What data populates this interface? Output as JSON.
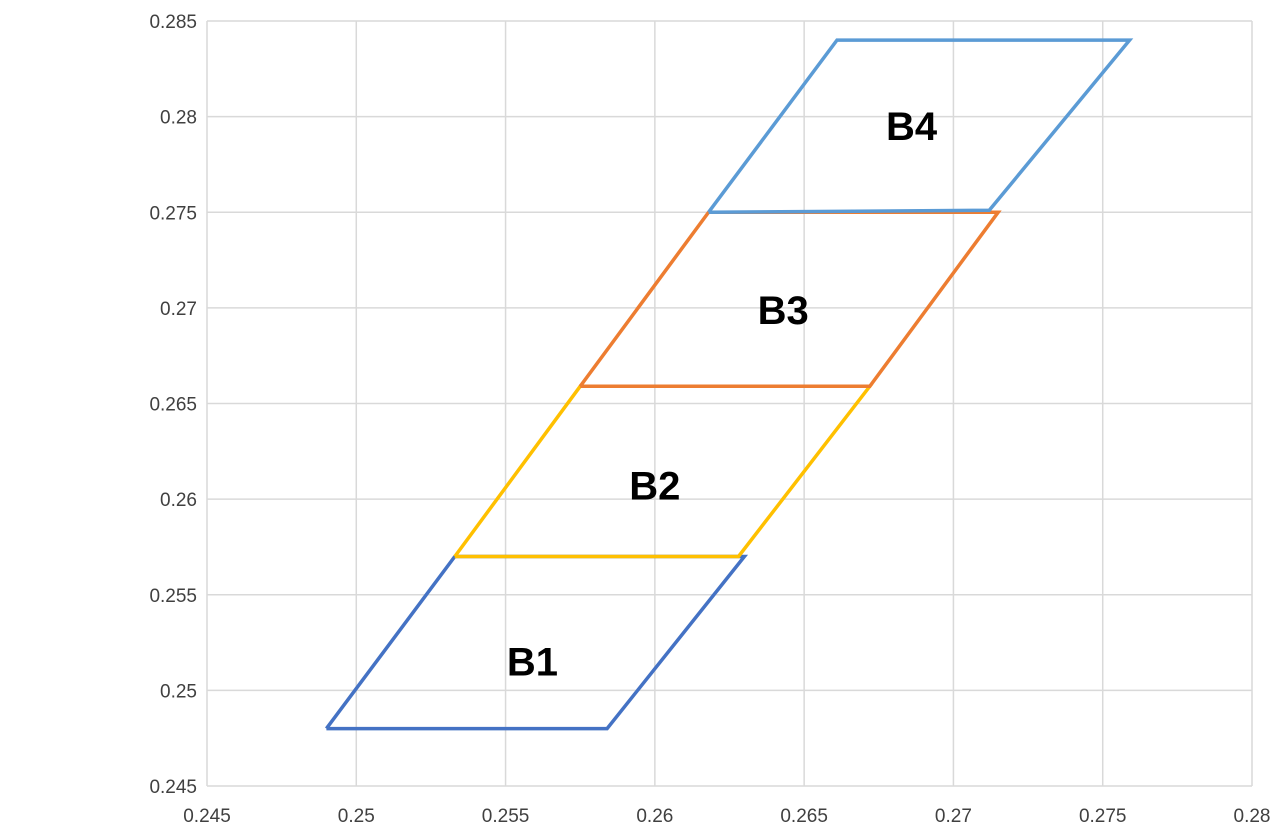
{
  "chart_data": {
    "type": "line",
    "title": "",
    "xlabel": "",
    "ylabel": "",
    "xlim": [
      0.245,
      0.28
    ],
    "ylim": [
      0.245,
      0.285
    ],
    "x_ticks": [
      0.245,
      0.25,
      0.255,
      0.26,
      0.265,
      0.27,
      0.275,
      0.28
    ],
    "y_ticks": [
      0.245,
      0.25,
      0.255,
      0.26,
      0.265,
      0.27,
      0.275,
      0.28,
      0.285
    ],
    "x_tick_labels": [
      "0.245",
      "0.25",
      "0.255",
      "0.26",
      "0.265",
      "0.27",
      "0.275",
      "0.28"
    ],
    "y_tick_labels": [
      "0.245",
      "0.25",
      "0.255",
      "0.26",
      "0.265",
      "0.27",
      "0.275",
      "0.28",
      "0.285"
    ],
    "grid": true,
    "legend": "none",
    "series": [
      {
        "name": "B1",
        "color": "#4472c4",
        "points": [
          [
            0.249,
            0.248
          ],
          [
            0.2584,
            0.248
          ],
          [
            0.263,
            0.257
          ],
          [
            0.2533,
            0.257
          ],
          [
            0.249,
            0.248
          ]
        ]
      },
      {
        "name": "B2",
        "color": "#ffc000",
        "points": [
          [
            0.2533,
            0.257
          ],
          [
            0.2628,
            0.257
          ],
          [
            0.2672,
            0.2659
          ],
          [
            0.2575,
            0.2659
          ],
          [
            0.2533,
            0.257
          ]
        ]
      },
      {
        "name": "B3",
        "color": "#ed7d31",
        "points": [
          [
            0.2575,
            0.2659
          ],
          [
            0.2672,
            0.2659
          ],
          [
            0.2715,
            0.275
          ],
          [
            0.2618,
            0.275
          ],
          [
            0.2575,
            0.2659
          ]
        ]
      },
      {
        "name": "B4",
        "color": "#5b9bd5",
        "points": [
          [
            0.2618,
            0.275
          ],
          [
            0.2712,
            0.2751
          ],
          [
            0.2759,
            0.284
          ],
          [
            0.2661,
            0.284
          ],
          [
            0.2618,
            0.275
          ]
        ]
      }
    ],
    "annotations": [
      {
        "text": "B1",
        "x": 0.2559,
        "y": 0.2515
      },
      {
        "text": "B2",
        "x": 0.26,
        "y": 0.2607
      },
      {
        "text": "B3",
        "x": 0.2643,
        "y": 0.2699
      },
      {
        "text": "B4",
        "x": 0.2686,
        "y": 0.2795
      }
    ]
  }
}
